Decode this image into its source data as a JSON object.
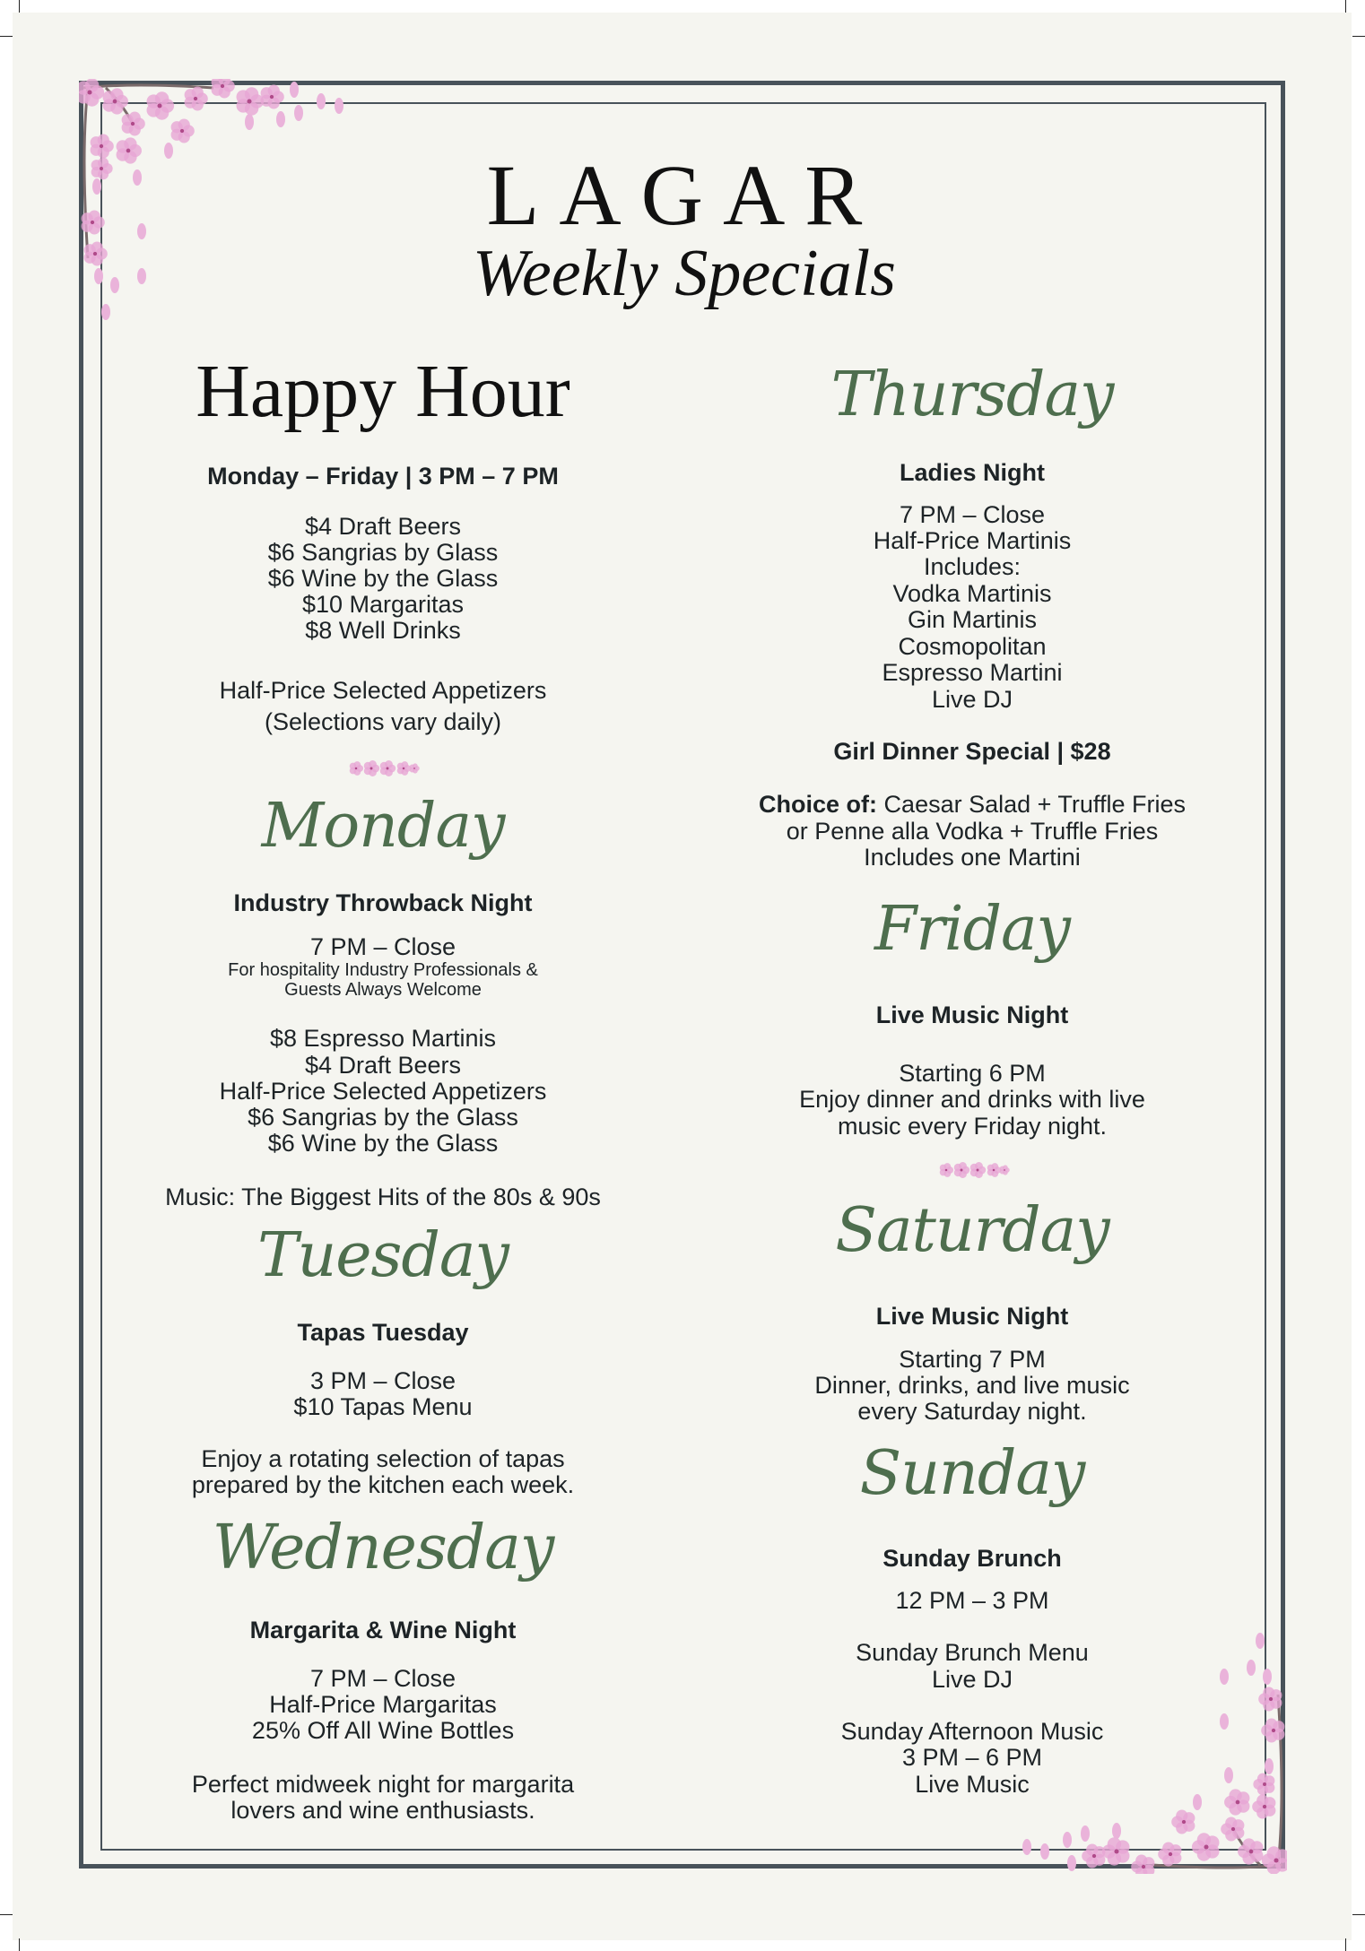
{
  "header": {
    "brand": "LAGAR",
    "subtitle": "Weekly Specials"
  },
  "happy_hour": {
    "title": "Happy Hour",
    "schedule": "Monday – Friday | 3 PM – 7 PM",
    "items": [
      "$4 Draft Beers",
      "$6 Sangrias by Glass",
      "$6 Wine by the Glass",
      "$10 Margaritas",
      "$8 Well Drinks"
    ],
    "note": [
      "Half-Price Selected Appetizers",
      "(Selections vary daily)"
    ]
  },
  "monday": {
    "day": "Monday",
    "title": "Industry Throwback Night",
    "time": "7 PM – Close",
    "fine_print": [
      "For hospitality Industry Professionals &",
      "Guests Always Welcome"
    ],
    "items": [
      "$8 Espresso Martinis",
      "$4 Draft Beers",
      "Half-Price Selected Appetizers",
      "$6 Sangrias by the Glass",
      "$6 Wine by the Glass"
    ],
    "music": "Music: The Biggest Hits of the 80s & 90s"
  },
  "tuesday": {
    "day": "Tuesday",
    "title": "Tapas Tuesday",
    "items": [
      "3 PM – Close",
      "$10 Tapas Menu"
    ],
    "note": [
      "Enjoy a rotating selection of tapas",
      "prepared by the kitchen each week."
    ]
  },
  "wednesday": {
    "day": "Wednesday",
    "title": "Margarita & Wine Night",
    "items": [
      "7 PM – Close",
      "Half-Price Margaritas",
      "25% Off All Wine Bottles"
    ],
    "note": [
      "Perfect midweek night for margarita",
      "lovers and wine enthusiasts."
    ]
  },
  "thursday": {
    "day": "Thursday",
    "title": "Ladies Night",
    "items": [
      "7 PM – Close",
      "Half-Price Martinis",
      "Includes:",
      "Vodka Martinis",
      "Gin Martinis",
      "Cosmopolitan",
      "Espresso Martini",
      "Live DJ"
    ],
    "special": "Girl Dinner Special | $28",
    "choice_label": "Choice of:",
    "choice": [
      "Caesar Salad + Truffle Fries",
      "or Penne alla Vodka + Truffle Fries",
      "Includes one Martini"
    ]
  },
  "friday": {
    "day": "Friday",
    "title": "Live Music Night",
    "items": [
      "Starting 6 PM",
      "Enjoy dinner and drinks with live",
      "music every Friday night."
    ]
  },
  "saturday": {
    "day": "Saturday",
    "title": "Live Music Night",
    "items": [
      "Starting 7 PM",
      "Dinner, drinks, and live music",
      "every Saturday night."
    ]
  },
  "sunday": {
    "day": "Sunday",
    "title": "Sunday Brunch",
    "time": "12 PM – 3 PM",
    "items": [
      "Sunday Brunch Menu",
      "Live DJ"
    ],
    "afternoon": [
      "Sunday Afternoon Music",
      "3 PM – 6 PM",
      "Live Music"
    ]
  },
  "colors": {
    "script_green": "#4e6e4e",
    "border": "#48525a",
    "paper": "#f5f5f0",
    "blossom": "#e7a6d4"
  },
  "decor": {
    "corner_icon": "cherry-blossom-branch-icon",
    "divider_icon": "blossom-divider-icon"
  }
}
